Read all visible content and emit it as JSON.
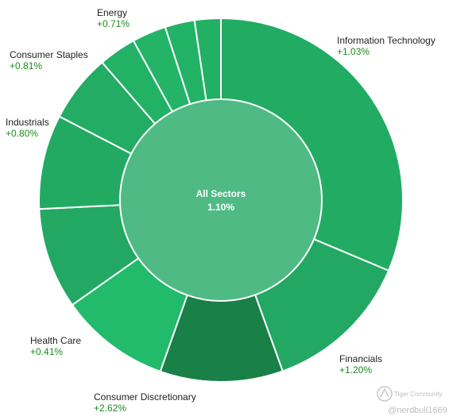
{
  "chart_data": {
    "type": "pie",
    "center": {
      "label": "All Sectors",
      "value": "1.10%"
    },
    "slices": [
      {
        "name": "Information Technology",
        "change": "+1.03%",
        "weight": 31.0,
        "color": "#22ac63"
      },
      {
        "name": "Financials",
        "change": "+1.20%",
        "weight": 13.0,
        "color": "#22a862"
      },
      {
        "name": "Consumer Discretionary",
        "change": "+2.62%",
        "weight": 10.8,
        "color": "#198048"
      },
      {
        "name": "Health Care",
        "change": "+0.41%",
        "weight": 9.7,
        "color": "#21bb6b"
      },
      {
        "name": "",
        "change": "",
        "weight": 8.9,
        "color": "#22a862"
      },
      {
        "name": "Industrials",
        "change": "+0.80%",
        "weight": 8.3,
        "color": "#22aa63"
      },
      {
        "name": "Consumer Staples",
        "change": "+0.81%",
        "weight": 6.0,
        "color": "#22ac64"
      },
      {
        "name": "Energy",
        "change": "+0.71%",
        "weight": 3.3,
        "color": "#22b266"
      },
      {
        "name": "",
        "change": "",
        "weight": 3.0,
        "color": "#23b468"
      },
      {
        "name": "",
        "change": "",
        "weight": 2.6,
        "color": "#22b266"
      },
      {
        "name": "",
        "change": "",
        "weight": 2.3,
        "color": "#22b064"
      }
    ],
    "center_color": "#4fba84",
    "label_color": "#222222",
    "change_color": "#1a8c1a"
  },
  "watermark": {
    "brand": "Tiger Community",
    "user": "@nerdbull1669"
  }
}
